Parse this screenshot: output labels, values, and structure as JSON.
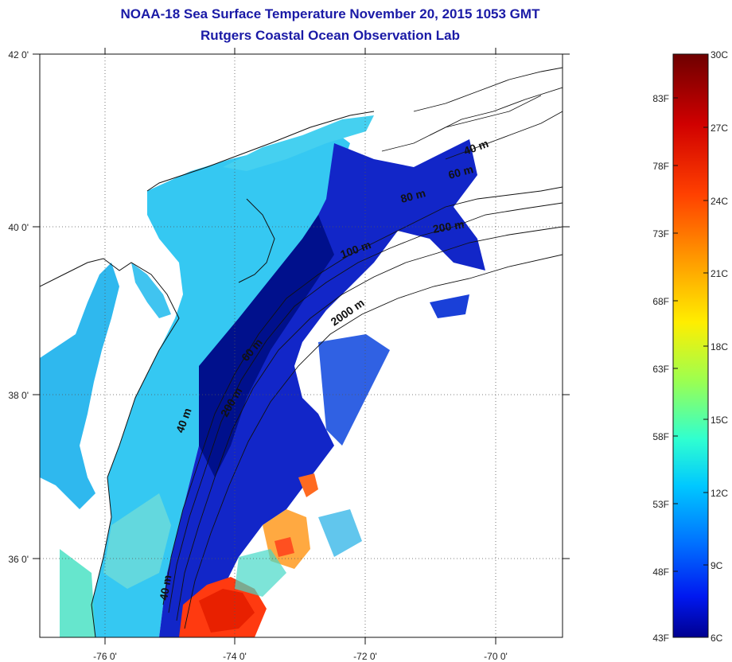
{
  "title": {
    "line1": "NOAA-18 Sea Surface Temperature November 20, 2015 1053 GMT",
    "line2": "Rutgers Coastal Ocean Observation Lab"
  },
  "map": {
    "lon_ticks": [
      "-76 0'",
      "-74 0'",
      "-72 0'",
      "-70 0'"
    ],
    "lat_ticks": [
      "42 0'",
      "40 0'",
      "38 0'",
      "36 0'"
    ],
    "contour_labels": [
      "40 m",
      "60 m",
      "80 m",
      "100 m",
      "200 m",
      "2000 m",
      "40 m",
      "60 m",
      "200 m",
      "40 m"
    ]
  },
  "colorbar": {
    "fahrenheit_labels": [
      "83F",
      "78F",
      "73F",
      "68F",
      "63F",
      "58F",
      "53F",
      "48F",
      "43F"
    ],
    "celsius_labels": [
      "30C",
      "27C",
      "24C",
      "21C",
      "18C",
      "15C",
      "12C",
      "9C",
      "6C"
    ],
    "colors": [
      "#7a0000",
      "#d40000",
      "#ff3c00",
      "#ff9a00",
      "#ffe600",
      "#b8ff40",
      "#40ffbc",
      "#00d8ff",
      "#0080ff",
      "#0020ff",
      "#00009a"
    ]
  }
}
